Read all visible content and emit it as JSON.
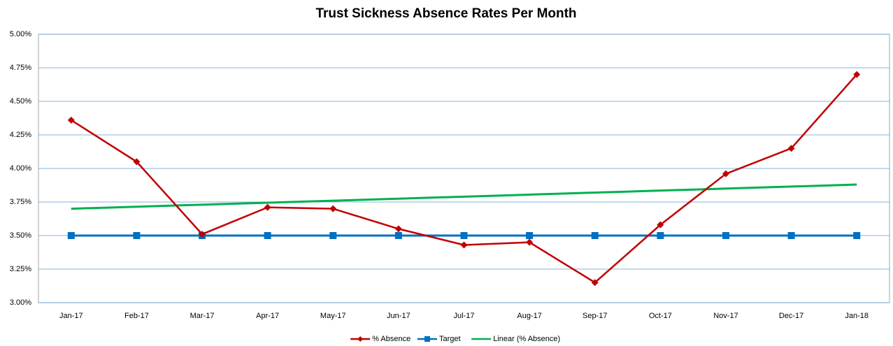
{
  "chart_data": {
    "type": "line",
    "title": "Trust Sickness Absence Rates Per Month",
    "categories": [
      "Jan-17",
      "Feb-17",
      "Mar-17",
      "Apr-17",
      "May-17",
      "Jun-17",
      "Jul-17",
      "Aug-17",
      "Sep-17",
      "Oct-17",
      "Nov-17",
      "Dec-17",
      "Jan-18"
    ],
    "series": [
      {
        "name": "% Absence",
        "color": "#c00000",
        "marker": "diamond",
        "values": [
          4.36,
          4.05,
          3.51,
          3.71,
          3.7,
          3.55,
          3.43,
          3.45,
          3.15,
          3.58,
          3.96,
          4.15,
          4.7
        ]
      },
      {
        "name": "Target",
        "color": "#0070c0",
        "marker": "square",
        "values": [
          3.5,
          3.5,
          3.5,
          3.5,
          3.5,
          3.5,
          3.5,
          3.5,
          3.5,
          3.5,
          3.5,
          3.5,
          3.5
        ]
      },
      {
        "name": "Linear (% Absence)",
        "color": "#00b050",
        "marker": "none",
        "values": [
          3.7,
          3.715,
          3.73,
          3.745,
          3.76,
          3.775,
          3.79,
          3.805,
          3.82,
          3.835,
          3.85,
          3.865,
          3.88
        ]
      }
    ],
    "ylim": [
      3.0,
      5.0
    ],
    "yticks": [
      {
        "value": 3.0,
        "label": "3.00%"
      },
      {
        "value": 3.25,
        "label": "3.25%"
      },
      {
        "value": 3.5,
        "label": "3.50%"
      },
      {
        "value": 3.75,
        "label": "3.75%"
      },
      {
        "value": 4.0,
        "label": "4.00%"
      },
      {
        "value": 4.25,
        "label": "4.25%"
      },
      {
        "value": 4.5,
        "label": "4.50%"
      },
      {
        "value": 4.75,
        "label": "4.75%"
      },
      {
        "value": 5.0,
        "label": "5.00%"
      }
    ],
    "grid": true,
    "legend": "bottom"
  }
}
